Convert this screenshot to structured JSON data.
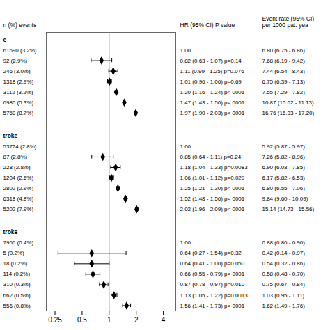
{
  "chart_data": {
    "type": "forest",
    "log": "x",
    "xlim": [
      0.2,
      5.5
    ],
    "xticks": [
      0.25,
      0.5,
      1,
      2,
      4
    ],
    "reference": 1,
    "column_headers": {
      "n": "n (%) events",
      "hr": "HR (95% CI) P value",
      "rate": [
        "Event rate (95% CI)",
        "per 1000 pat. yea"
      ]
    },
    "sections": [
      {
        "label": "e",
        "rows": [
          {
            "n_text": "61690 (3.2%)",
            "hr": null,
            "ci_lo": null,
            "ci_hi": null,
            "hr_text": "1.00",
            "rate_text": "6.80 (6.75 - 6.86)"
          },
          {
            "n_text": "92 (2.9%)",
            "hr": 0.82,
            "ci_lo": 0.63,
            "ci_hi": 1.07,
            "hr_text": "0.82 (0.63 - 1.07) p=0.14",
            "rate_text": "7.68 (6.19 - 9.42)"
          },
          {
            "n_text": "246 (3.0%)",
            "hr": 1.11,
            "ci_lo": 0.99,
            "ci_hi": 1.25,
            "hr_text": "1.11 (0.99 - 1.25) p=0.076",
            "rate_text": "7.44 (6.54 - 8.43)"
          },
          {
            "n_text": "1318 (2.9%)",
            "hr": 1.01,
            "ci_lo": 0.96,
            "ci_hi": 1.06,
            "hr_text": "1.01 (0.96 - 1.06) p=0.69",
            "rate_text": "6.75 (6.39 - 7.13)"
          },
          {
            "n_text": "3112 (3.2%)",
            "hr": 1.2,
            "ci_lo": 1.16,
            "ci_hi": 1.24,
            "hr_text": "1.20 (1.16 - 1.24) p< 0001",
            "rate_text": "7.55 (7.29 - 7.82)"
          },
          {
            "n_text": "6980 (5.3%)",
            "hr": 1.47,
            "ci_lo": 1.43,
            "ci_hi": 1.5,
            "hr_text": "1.47 (1.43 - 1.50) p< 0001",
            "rate_text": "10.87 (10.62 - 11.13)"
          },
          {
            "n_text": "5758 (8.7%)",
            "hr": 1.97,
            "ci_lo": 1.9,
            "ci_hi": 2.03,
            "hr_text": "1.97 (1.90 - 2.03) p< 0001",
            "rate_text": "16.76 (16.33 - 17.20)"
          }
        ]
      },
      {
        "label": "troke",
        "rows": [
          {
            "n_text": "53724 (2.8%)",
            "hr": null,
            "ci_lo": null,
            "ci_hi": null,
            "hr_text": "1.00",
            "rate_text": "5.92 (5.87 - 5.97)"
          },
          {
            "n_text": "87 (2.8%)",
            "hr": 0.85,
            "ci_lo": 0.64,
            "ci_hi": 1.11,
            "hr_text": "0.85 (0.64 - 1.11) p=0.24",
            "rate_text": "7.26 (5.82 - 8.96)"
          },
          {
            "n_text": "228 (2.8%)",
            "hr": 1.18,
            "ci_lo": 1.04,
            "ci_hi": 1.33,
            "hr_text": "1.18 (1.04 - 1.33) p=0.0083",
            "rate_text": "6.90 (6.03 - 7.85)"
          },
          {
            "n_text": "1204 (2.6%)",
            "hr": 1.06,
            "ci_lo": 1.01,
            "ci_hi": 1.12,
            "hr_text": "1.06 (1.01 - 1.12) p=0.029",
            "rate_text": "6.17 (5.82 - 6.53)"
          },
          {
            "n_text": "2802 (2.9%)",
            "hr": 1.25,
            "ci_lo": 1.21,
            "ci_hi": 1.3,
            "hr_text": "1.25 (1.21 - 1.30) p< 0001",
            "rate_text": "6.80 (6.55 - 7.06)"
          },
          {
            "n_text": "6318 (4.8%)",
            "hr": 1.52,
            "ci_lo": 1.48,
            "ci_hi": 1.56,
            "hr_text": "1.52 (1.48 - 1.56) p< 0001",
            "rate_text": "9.84 (9.60 - 10.09)"
          },
          {
            "n_text": "5202 (7.9%)",
            "hr": 2.02,
            "ci_lo": 1.96,
            "ci_hi": 2.09,
            "hr_text": "2.02 (1.96 - 2.09) p< 0001",
            "rate_text": "15.14 (14.73 - 15.56)"
          }
        ]
      },
      {
        "label": "troke",
        "rows": [
          {
            "n_text": "7966 (0.4%)",
            "hr": null,
            "ci_lo": null,
            "ci_hi": null,
            "hr_text": "1.00",
            "rate_text": "0.88 (0.86 - 0.90)"
          },
          {
            "n_text": "5 (0.2%)",
            "hr": 0.64,
            "ci_lo": 0.27,
            "ci_hi": 1.54,
            "hr_text": "0.64 (0.27 - 1.54) p=0.32",
            "rate_text": "0.42 (0.14 - 0.97)"
          },
          {
            "n_text": "18 (0.2%)",
            "hr": 0.64,
            "ci_lo": 0.41,
            "ci_hi": 1.0,
            "hr_text": "0.64 (0.41 - 1.00) p=0.050",
            "rate_text": "0.54 (0.32 - 0.86)"
          },
          {
            "n_text": "114 (0.2%)",
            "hr": 0.66,
            "ci_lo": 0.55,
            "ci_hi": 0.79,
            "hr_text": "0.66 (0.55 - 0.79) p< 0001",
            "rate_text": "0.58 (0.48 - 0.70)"
          },
          {
            "n_text": "310 (0.3%)",
            "hr": 0.87,
            "ci_lo": 0.78,
            "ci_hi": 0.97,
            "hr_text": "0.87 (0.78 - 0.97) p=0.010",
            "rate_text": "0.75 (0.67 - 0.84)"
          },
          {
            "n_text": "662 (0.5%)",
            "hr": 1.13,
            "ci_lo": 1.05,
            "ci_hi": 1.22,
            "hr_text": "1.13 (1.05 - 1.22) p=0.0013",
            "rate_text": "1.03 (0.95 - 1.11)"
          },
          {
            "n_text": "556 (0.8%)",
            "hr": 1.56,
            "ci_lo": 1.41,
            "ci_hi": 1.73,
            "hr_text": "1.56 (1.41 - 1.73) p< 0001",
            "rate_text": "1.62 (1.49 - 1.76)"
          }
        ]
      }
    ]
  }
}
